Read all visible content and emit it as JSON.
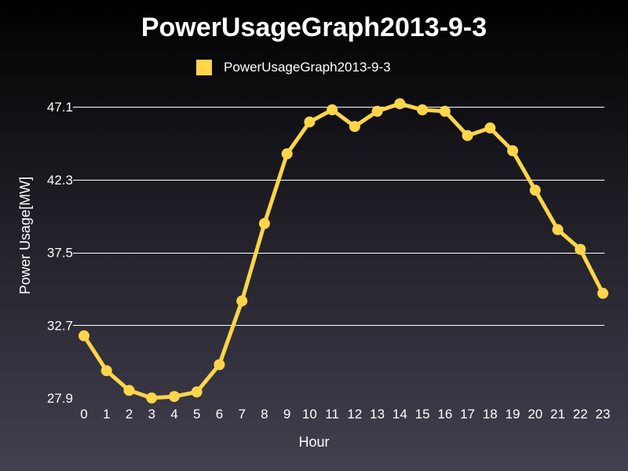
{
  "colors": {
    "series": "#ffd54a",
    "text": "#ffffff",
    "grid": "#ffffff"
  },
  "chart_data": {
    "type": "line",
    "title": "PowerUsageGraph2013-9-3",
    "xlabel": "Hour",
    "ylabel": "Power Usage[MW]",
    "x": [
      0,
      1,
      2,
      3,
      4,
      5,
      6,
      7,
      8,
      9,
      10,
      11,
      12,
      13,
      14,
      15,
      16,
      17,
      18,
      19,
      20,
      21,
      22,
      23
    ],
    "x_tick_labels": [
      "0",
      "1",
      "2",
      "3",
      "4",
      "5",
      "6",
      "7",
      "8",
      "9",
      "10",
      "11",
      "12",
      "13",
      "14",
      "15",
      "16",
      "17",
      "18",
      "19",
      "20",
      "21",
      "22",
      "23"
    ],
    "y_tick_labels": [
      "27.9",
      "32.7",
      "37.5",
      "42.3",
      "47.1"
    ],
    "ylim": [
      27.9,
      47.1
    ],
    "grid": true,
    "legend_position": "top-center",
    "series": [
      {
        "name": "PowerUsageGraph2013-9-3",
        "values": [
          32.0,
          29.7,
          28.4,
          27.9,
          28.0,
          28.3,
          30.1,
          34.3,
          39.4,
          44.0,
          46.1,
          46.9,
          45.8,
          46.8,
          47.3,
          46.9,
          46.8,
          45.2,
          45.7,
          44.2,
          41.6,
          39.0,
          37.7,
          34.8
        ]
      }
    ]
  }
}
